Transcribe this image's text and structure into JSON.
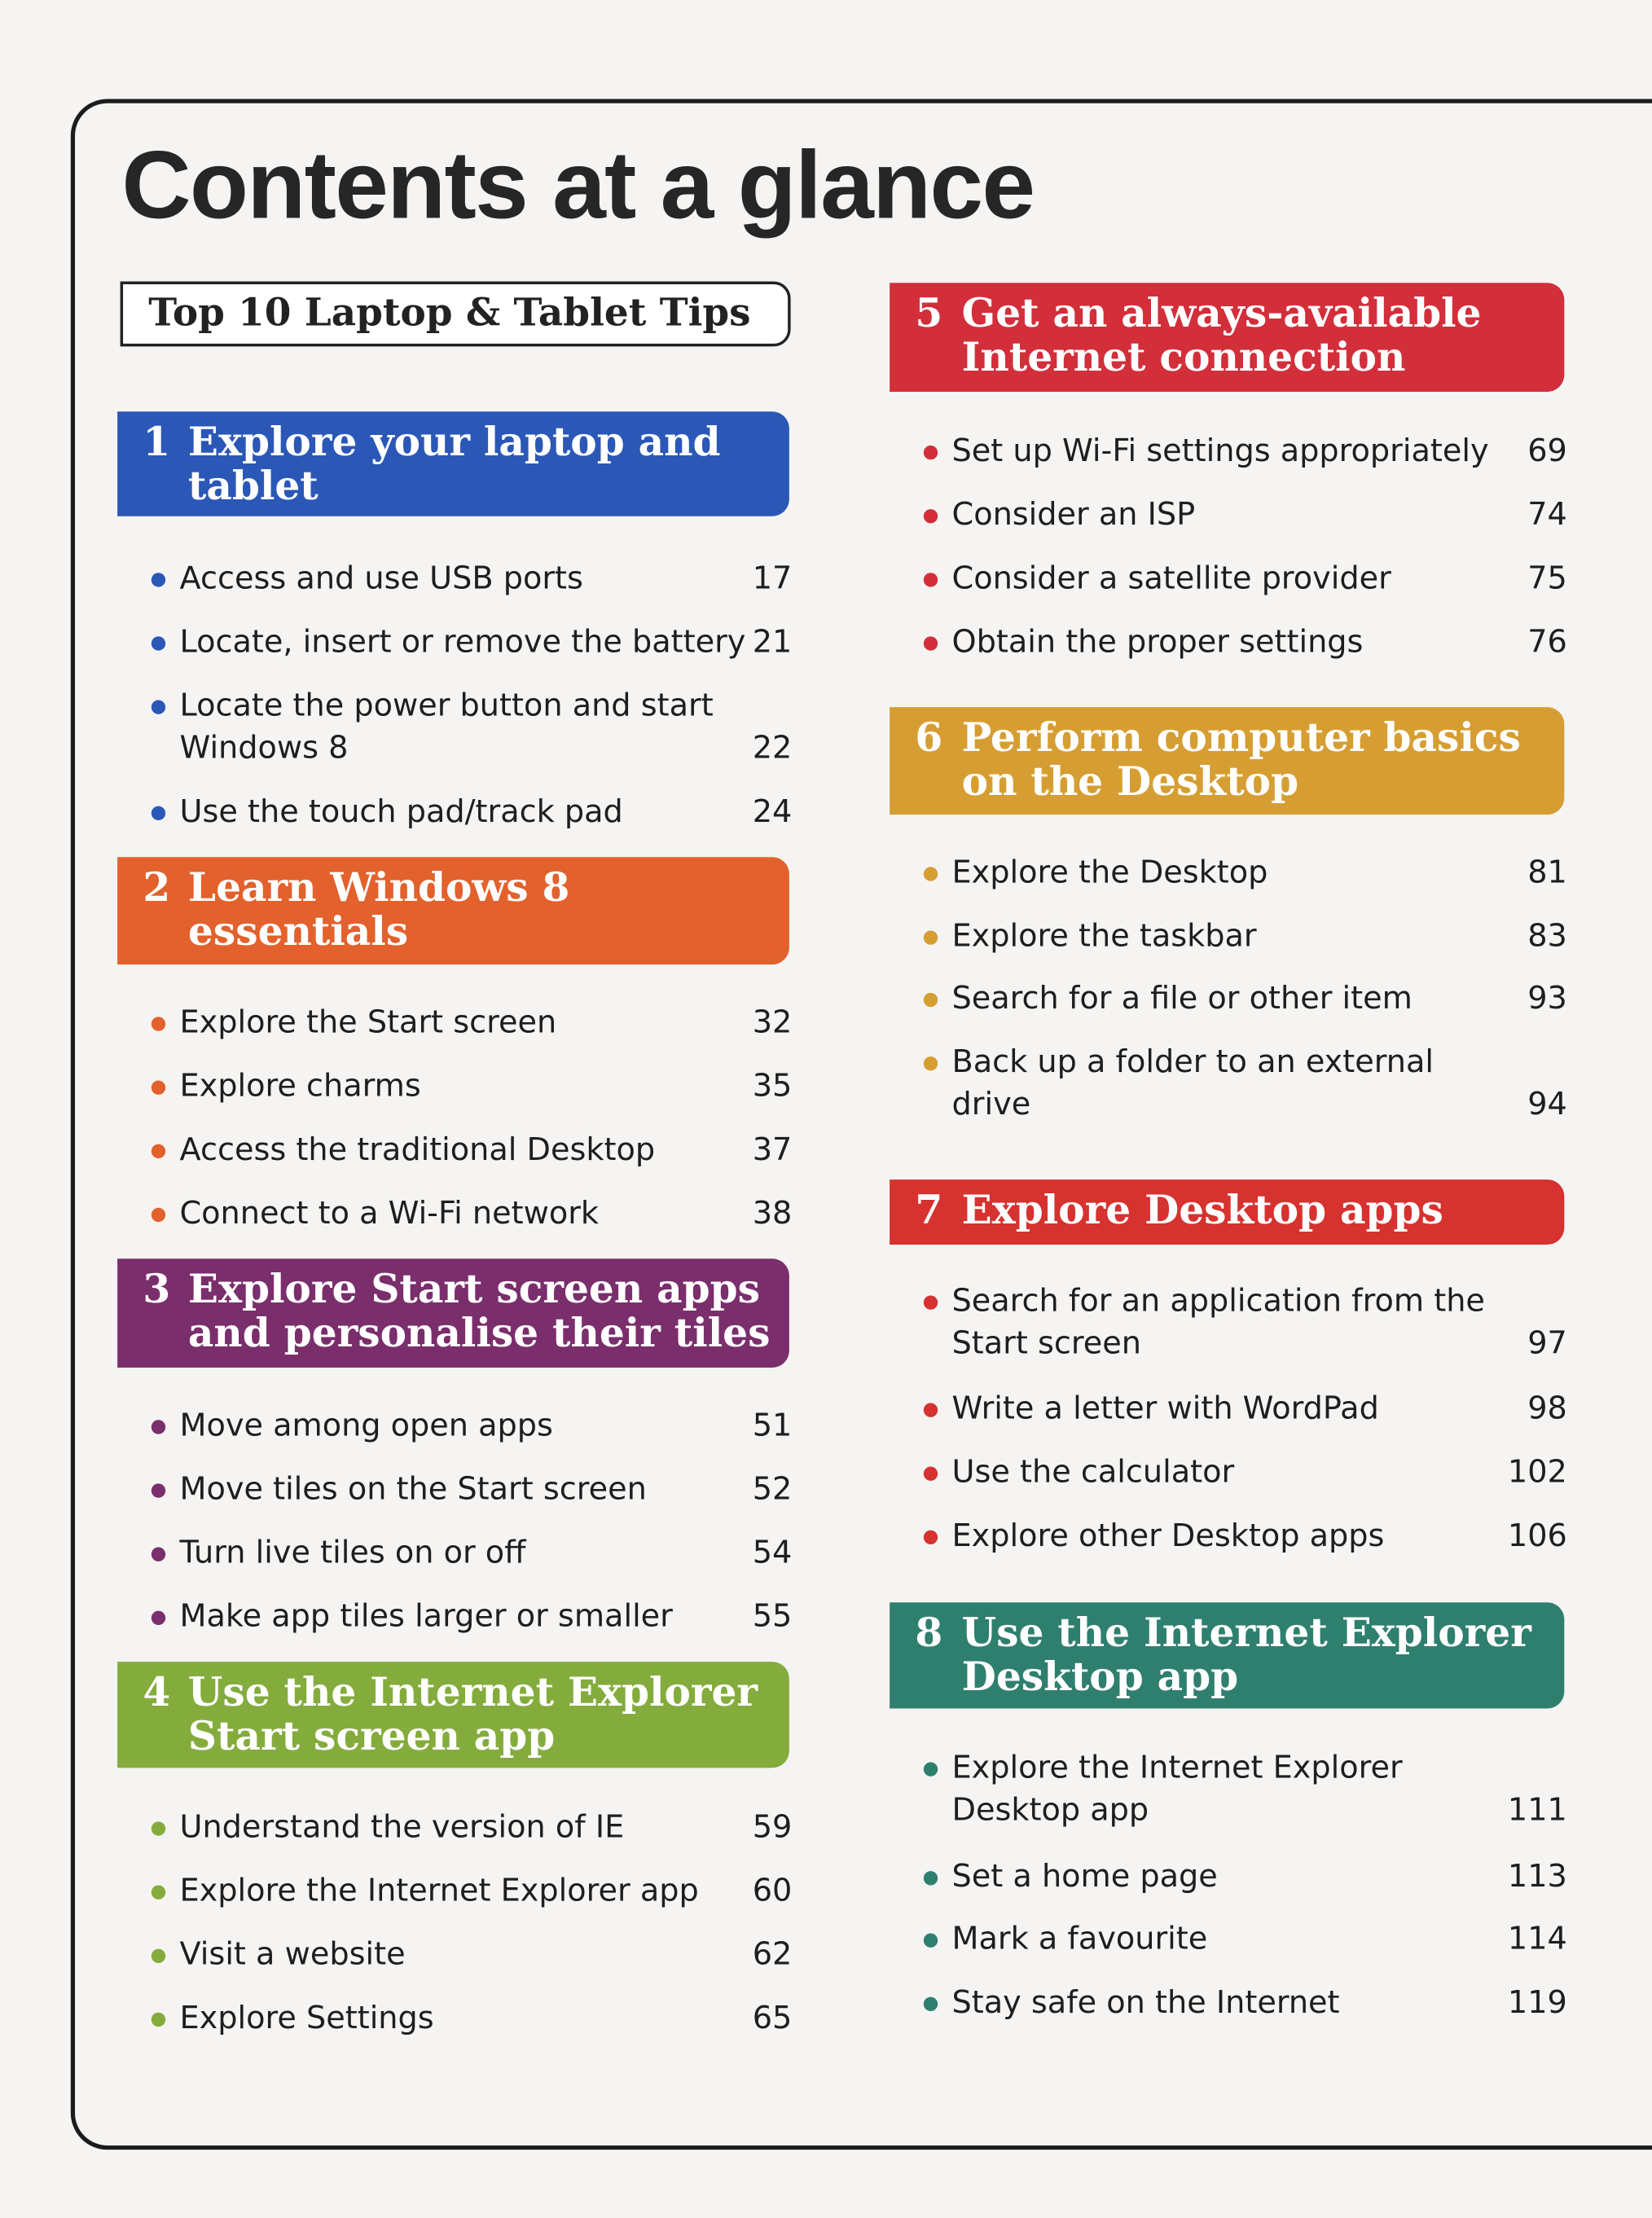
{
  "title": "Contents at a glance",
  "top10_label": "Top 10 Laptop & Tablet Tips",
  "sections": [
    {
      "number": "1",
      "title": "Explore your laptop and\ntablet",
      "color": "#2b58b6",
      "items": [
        {
          "label": "Access and use USB ports",
          "page": "17"
        },
        {
          "label": "Locate, insert or remove the battery",
          "page": "21"
        },
        {
          "label": "Locate the power button and start\nWindows 8",
          "page": "22"
        },
        {
          "label": "Use the touch pad/track pad",
          "page": "24"
        }
      ]
    },
    {
      "number": "2",
      "title": "Learn Windows 8\nessentials",
      "color": "#e2612c",
      "items": [
        {
          "label": "Explore the Start screen",
          "page": "32"
        },
        {
          "label": "Explore charms",
          "page": "35"
        },
        {
          "label": "Access the traditional Desktop",
          "page": "37"
        },
        {
          "label": "Connect to a Wi-Fi network",
          "page": "38"
        }
      ]
    },
    {
      "number": "3",
      "title": "Explore Start screen apps\nand personalise their tiles",
      "color": "#7a2e6c",
      "items": [
        {
          "label": "Move among open apps",
          "page": "51"
        },
        {
          "label": "Move tiles on the Start screen",
          "page": "52"
        },
        {
          "label": "Turn live tiles on or off",
          "page": "54"
        },
        {
          "label": "Make app tiles larger or smaller",
          "page": "55"
        }
      ]
    },
    {
      "number": "4",
      "title": "Use the Internet Explorer\nStart screen app",
      "color": "#84ac3c",
      "items": [
        {
          "label": "Understand the version of IE",
          "page": "59"
        },
        {
          "label": "Explore the Internet Explorer app",
          "page": "60"
        },
        {
          "label": "Visit a website",
          "page": "62"
        },
        {
          "label": "Explore Settings",
          "page": "65"
        }
      ]
    },
    {
      "number": "5",
      "title": "Get an always-available\nInternet connection",
      "color": "#d22f3b",
      "items": [
        {
          "label": "Set up Wi-Fi settings appropriately",
          "page": "69"
        },
        {
          "label": "Consider an ISP",
          "page": "74"
        },
        {
          "label": "Consider a satellite provider",
          "page": "75"
        },
        {
          "label": "Obtain the proper settings",
          "page": "76"
        }
      ]
    },
    {
      "number": "6",
      "title": "Perform computer basics\non the Desktop",
      "color": "#d69e32",
      "items": [
        {
          "label": "Explore the Desktop",
          "page": "81"
        },
        {
          "label": "Explore the taskbar",
          "page": "83"
        },
        {
          "label": "Search for a file or other item",
          "page": "93"
        },
        {
          "label": "Back up a folder to an external\ndrive",
          "page": "94"
        }
      ]
    },
    {
      "number": "7",
      "title": "Explore Desktop apps",
      "color": "#d6322f",
      "items": [
        {
          "label": "Search for an application from the\nStart screen",
          "page": "97"
        },
        {
          "label": "Write a letter with WordPad",
          "page": "98"
        },
        {
          "label": "Use the calculator",
          "page": "102"
        },
        {
          "label": "Explore other Desktop apps",
          "page": "106"
        }
      ]
    },
    {
      "number": "8",
      "title": "Use the Internet Explorer\nDesktop app",
      "color": "#2f7f6f",
      "items": [
        {
          "label": "Explore the Internet Explorer\nDesktop app",
          "page": "111"
        },
        {
          "label": "Set a home page",
          "page": "113"
        },
        {
          "label": "Mark a favourite",
          "page": "114"
        },
        {
          "label": "Stay safe on the Internet",
          "page": "119"
        }
      ]
    }
  ]
}
